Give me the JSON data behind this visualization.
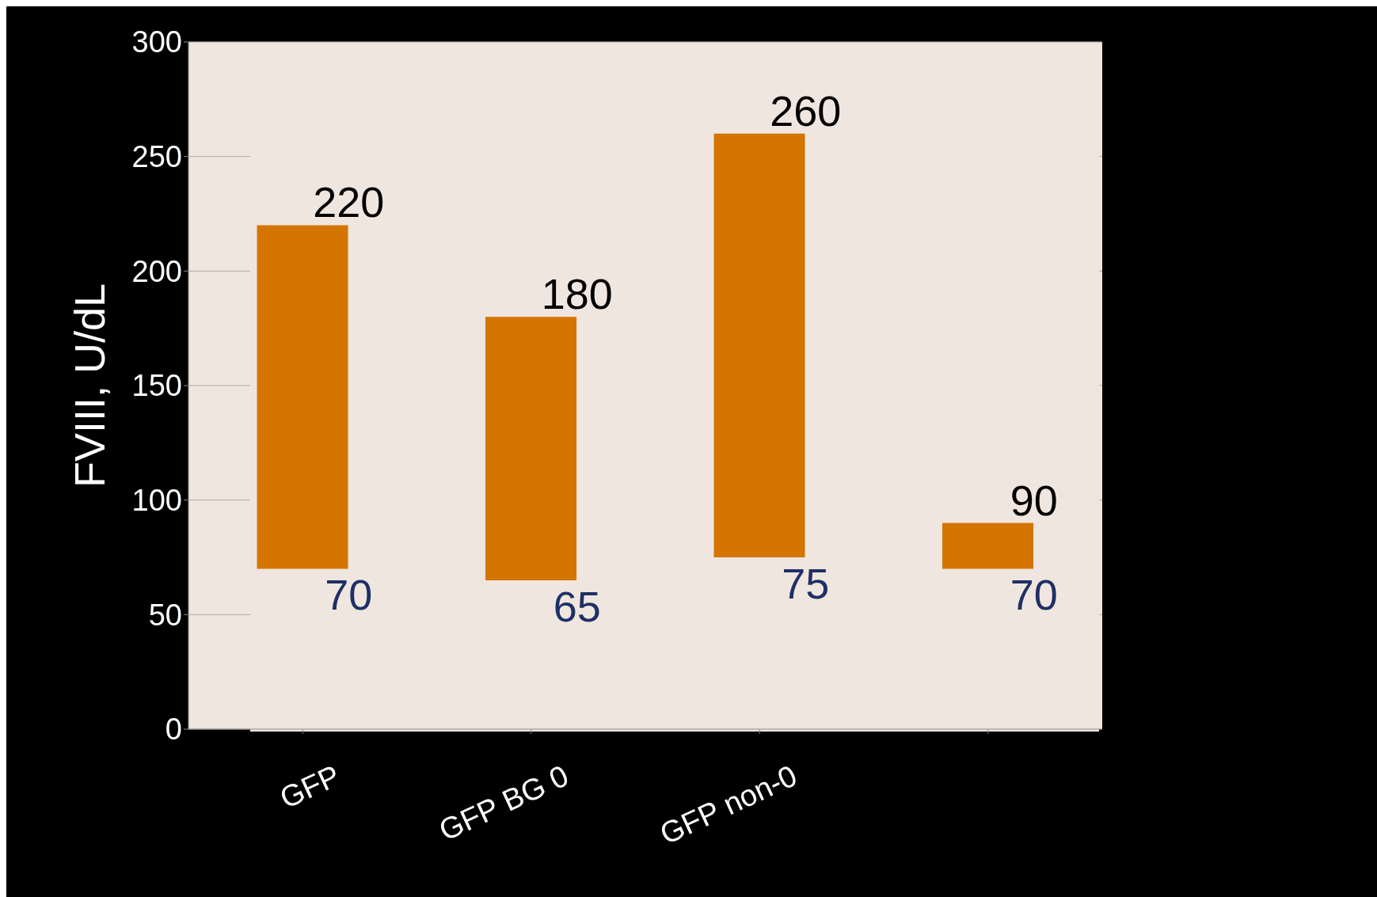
{
  "chart_data": {
    "type": "bar",
    "ylabel": "FVIII, U/dL",
    "categories": [
      "GFP",
      "GFP BG 0",
      "GFP non-0",
      null
    ],
    "values": [
      150,
      115,
      185,
      20
    ],
    "base": [
      70,
      65,
      75,
      70
    ],
    "color": "#d47500",
    "ylim": [
      0,
      300
    ],
    "yticks": [
      0,
      50,
      100,
      150,
      200,
      250,
      300
    ],
    "grid": "y",
    "annotations": [
      {
        "text": "220",
        "x": "GFP",
        "y": 220
      },
      {
        "text": "70",
        "x": "GFP",
        "y": 70
      },
      {
        "text": "180",
        "x": "GFP BG 0",
        "y": 180
      },
      {
        "text": "65",
        "x": "GFP BG 0",
        "y": 65
      },
      {
        "text": "260",
        "x": "GFP non-0",
        "y": 260
      },
      {
        "text": "75",
        "x": "GFP non-0",
        "y": 75
      },
      {
        "text": "90",
        "y": 90
      },
      {
        "text": "70",
        "y": 70
      }
    ]
  }
}
